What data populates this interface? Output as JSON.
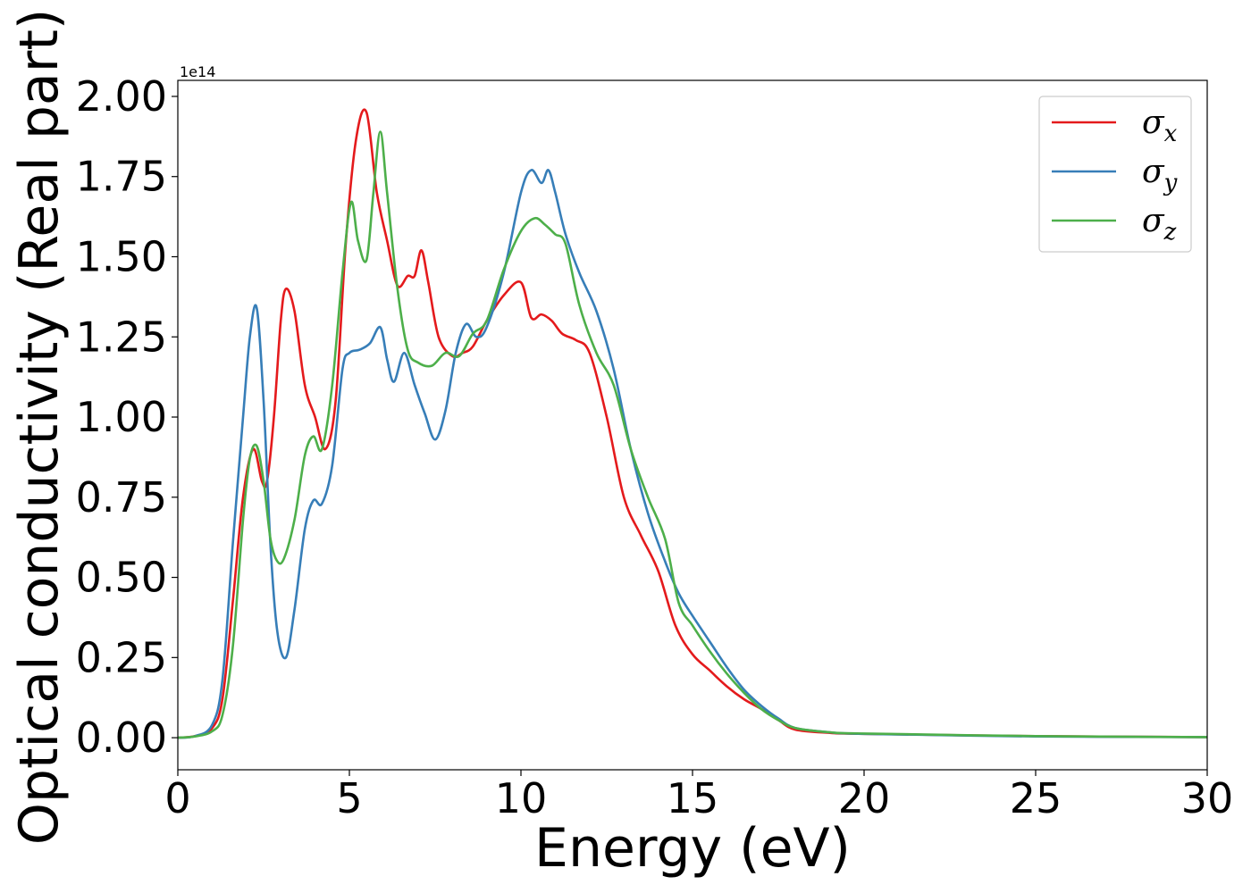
{
  "chart_data": {
    "type": "line",
    "xlabel": "Energy (eV)",
    "ylabel": "Optical conductivity (Real part)",
    "offset_label": "1e14",
    "xlim": [
      0,
      30
    ],
    "ylim": [
      -0.1,
      2.05
    ],
    "y_scale_factor": "1e14",
    "x_ticks": [
      0,
      5,
      10,
      15,
      20,
      25,
      30
    ],
    "x_tick_labels": [
      "0",
      "5",
      "10",
      "15",
      "20",
      "25",
      "30"
    ],
    "y_ticks": [
      0.0,
      0.25,
      0.5,
      0.75,
      1.0,
      1.25,
      1.5,
      1.75,
      2.0
    ],
    "y_tick_labels": [
      "0.00",
      "0.25",
      "0.50",
      "0.75",
      "1.00",
      "1.25",
      "1.50",
      "1.75",
      "2.00"
    ],
    "grid": false,
    "legend": "top-right",
    "series": [
      {
        "name": "σx",
        "symbol": "σ",
        "subscript": "x",
        "color": "#e41a1c",
        "x": [
          0,
          0.5,
          1.0,
          1.3,
          1.6,
          1.9,
          2.2,
          2.45,
          2.6,
          2.8,
          3.0,
          3.15,
          3.4,
          3.7,
          4.0,
          4.3,
          4.6,
          4.9,
          5.2,
          5.5,
          5.8,
          6.1,
          6.4,
          6.7,
          6.9,
          7.1,
          7.3,
          7.6,
          8.0,
          8.3,
          8.6,
          9.0,
          9.5,
          10.0,
          10.3,
          10.6,
          10.9,
          11.2,
          11.6,
          12.0,
          12.5,
          13.0,
          13.5,
          14.0,
          14.5,
          15.0,
          15.5,
          16.0,
          16.5,
          17.0,
          17.5,
          18.0,
          19.0,
          20.0,
          25.0,
          30.0
        ],
        "y": [
          0.0,
          0.005,
          0.03,
          0.12,
          0.42,
          0.75,
          0.9,
          0.8,
          0.8,
          1.0,
          1.3,
          1.4,
          1.33,
          1.1,
          1.0,
          0.9,
          1.05,
          1.55,
          1.87,
          1.95,
          1.7,
          1.55,
          1.41,
          1.44,
          1.44,
          1.52,
          1.42,
          1.25,
          1.19,
          1.2,
          1.22,
          1.3,
          1.38,
          1.42,
          1.31,
          1.32,
          1.3,
          1.26,
          1.24,
          1.2,
          1.0,
          0.75,
          0.63,
          0.52,
          0.35,
          0.26,
          0.21,
          0.16,
          0.12,
          0.09,
          0.055,
          0.025,
          0.015,
          0.012,
          0.005,
          0.002
        ]
      },
      {
        "name": "σy",
        "symbol": "σ",
        "subscript": "y",
        "color": "#377eb8",
        "x": [
          0,
          0.5,
          1.0,
          1.3,
          1.6,
          1.9,
          2.1,
          2.3,
          2.5,
          2.7,
          2.9,
          3.15,
          3.4,
          3.7,
          3.95,
          4.2,
          4.5,
          4.8,
          5.0,
          5.3,
          5.6,
          5.9,
          6.1,
          6.3,
          6.6,
          6.9,
          7.2,
          7.5,
          7.8,
          8.1,
          8.4,
          8.7,
          9.0,
          9.5,
          10.0,
          10.3,
          10.6,
          10.8,
          11.0,
          11.3,
          11.7,
          12.2,
          12.7,
          13.2,
          13.7,
          14.2,
          14.6,
          15.0,
          15.5,
          16.0,
          16.5,
          17.0,
          17.5,
          18.0,
          19.0,
          20.0,
          25.0,
          30.0
        ],
        "y": [
          0.0,
          0.005,
          0.04,
          0.18,
          0.6,
          1.0,
          1.25,
          1.34,
          1.05,
          0.6,
          0.33,
          0.25,
          0.4,
          0.65,
          0.74,
          0.73,
          0.85,
          1.15,
          1.2,
          1.21,
          1.23,
          1.28,
          1.18,
          1.11,
          1.2,
          1.1,
          1.01,
          0.93,
          1.02,
          1.2,
          1.29,
          1.25,
          1.28,
          1.45,
          1.7,
          1.77,
          1.73,
          1.77,
          1.7,
          1.57,
          1.45,
          1.33,
          1.15,
          0.9,
          0.7,
          0.55,
          0.45,
          0.38,
          0.3,
          0.22,
          0.15,
          0.1,
          0.06,
          0.03,
          0.017,
          0.012,
          0.004,
          0.002
        ]
      },
      {
        "name": "σz",
        "symbol": "σ",
        "subscript": "z",
        "color": "#4daf4a",
        "x": [
          0,
          0.5,
          1.0,
          1.3,
          1.6,
          1.9,
          2.1,
          2.3,
          2.5,
          2.7,
          2.9,
          3.1,
          3.4,
          3.7,
          3.95,
          4.2,
          4.5,
          4.8,
          5.05,
          5.25,
          5.5,
          5.7,
          5.9,
          6.1,
          6.4,
          6.7,
          7.0,
          7.4,
          7.8,
          8.2,
          8.6,
          9.0,
          9.5,
          10.0,
          10.4,
          10.7,
          11.0,
          11.3,
          11.7,
          12.2,
          12.7,
          13.2,
          13.7,
          14.2,
          14.6,
          15.0,
          15.5,
          16.0,
          16.5,
          17.0,
          17.5,
          18.0,
          19.0,
          20.0,
          25.0,
          30.0
        ],
        "y": [
          0.0,
          0.004,
          0.02,
          0.07,
          0.28,
          0.68,
          0.87,
          0.91,
          0.8,
          0.62,
          0.55,
          0.56,
          0.68,
          0.88,
          0.94,
          0.9,
          1.1,
          1.45,
          1.67,
          1.55,
          1.49,
          1.7,
          1.89,
          1.7,
          1.4,
          1.21,
          1.17,
          1.16,
          1.2,
          1.19,
          1.26,
          1.3,
          1.46,
          1.58,
          1.62,
          1.6,
          1.57,
          1.54,
          1.35,
          1.2,
          1.1,
          0.9,
          0.75,
          0.62,
          0.42,
          0.35,
          0.27,
          0.2,
          0.14,
          0.09,
          0.055,
          0.03,
          0.017,
          0.013,
          0.005,
          0.002
        ]
      }
    ]
  }
}
